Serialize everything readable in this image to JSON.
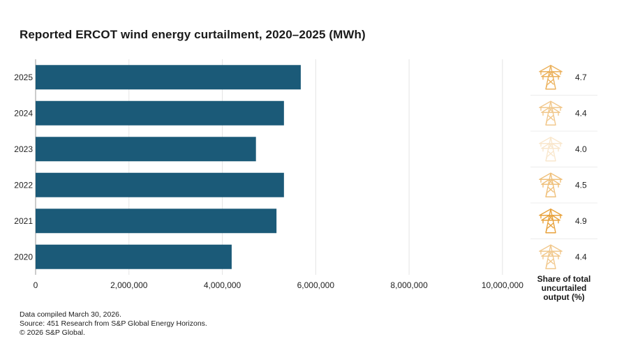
{
  "title": "Reported ERCOT wind energy curtailment, 2020–2025 (MWh)",
  "chart_data": {
    "type": "bar",
    "orientation": "horizontal",
    "categories": [
      "2025",
      "2024",
      "2023",
      "2022",
      "2021",
      "2020"
    ],
    "values": [
      5680000,
      5320000,
      4720000,
      5320000,
      5160000,
      4200000
    ],
    "xlim": [
      0,
      10600000
    ],
    "xticks": [
      0,
      2000000,
      4000000,
      6000000,
      8000000,
      10000000
    ],
    "xtick_labels": [
      "0",
      "2,000,000",
      "4,000,000",
      "6,000,000",
      "8,000,000",
      "10,000,000"
    ],
    "grid": "vertical",
    "bar_color": "#1b5a78",
    "side_panel": {
      "header": "Share of total uncurtailed output (%)",
      "values": [
        "4.7",
        "4.4",
        "4.0",
        "4.5",
        "4.9",
        "4.4"
      ],
      "icon": "transmission-tower-icon",
      "icon_color": "#e8a23c"
    }
  },
  "notes": [
    "Data compiled March 30, 2026.",
    "Source: 451 Research from S&P Global Energy Horizons.",
    "© 2026 S&P Global."
  ]
}
